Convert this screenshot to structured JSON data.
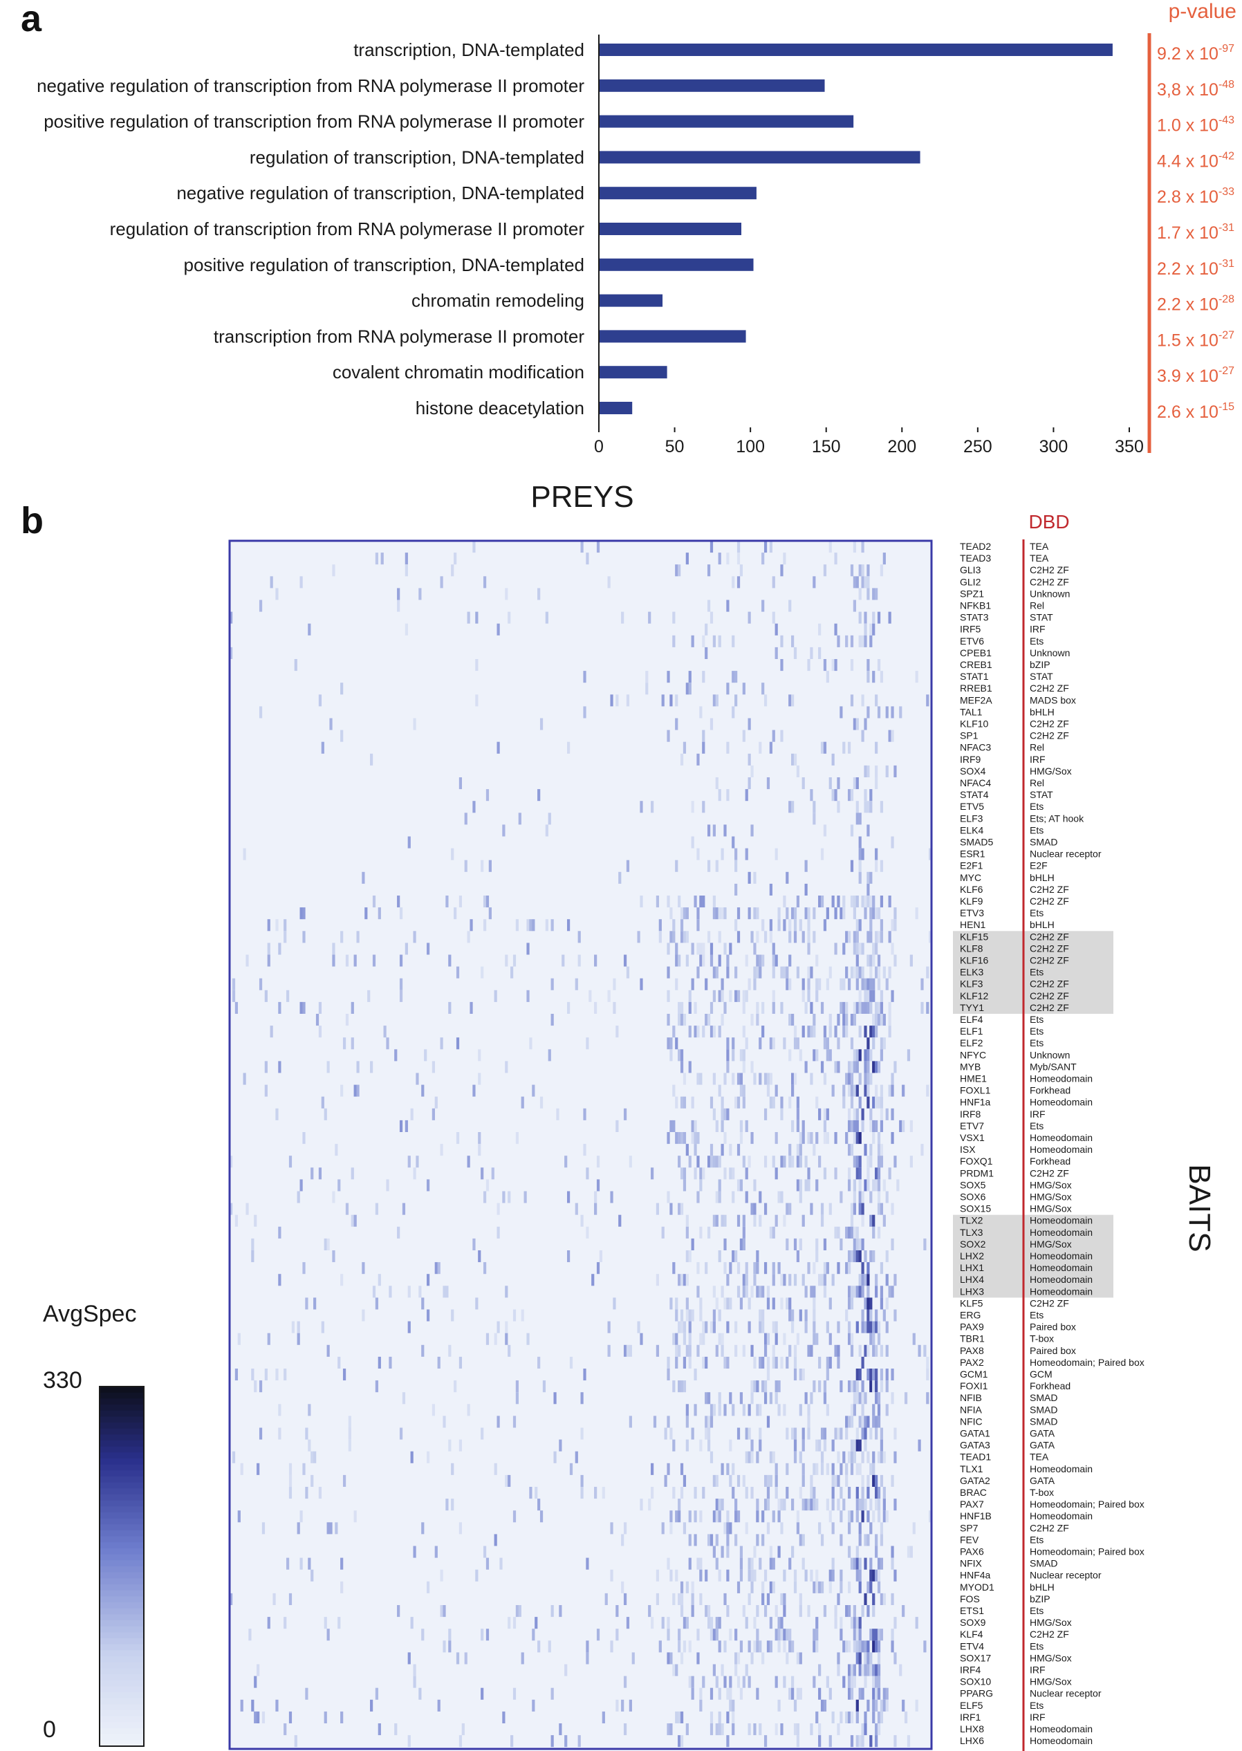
{
  "panel_a": {
    "letter": "a"
  },
  "panel_b": {
    "letter": "b"
  },
  "chart_data": [
    {
      "type": "bar",
      "orientation": "horizontal",
      "categories": [
        "transcription, DNA-templated",
        "negative regulation of transcription from RNA polymerase II promoter",
        "positive regulation of transcription from RNA polymerase II promoter",
        "regulation of transcription, DNA-templated",
        "negative regulation of transcription, DNA-templated",
        "regulation of transcription from RNA polymerase II promoter",
        "positive regulation of transcription, DNA-templated",
        "chromatin remodeling",
        "transcription from RNA polymerase II promoter",
        "covalent chromatin modification",
        "histone deacetylation"
      ],
      "values": [
        339,
        149,
        168,
        212,
        104,
        94,
        102,
        42,
        97,
        45,
        22
      ],
      "xlim": [
        0,
        350
      ],
      "xticks": [
        0,
        50,
        100,
        150,
        200,
        250,
        300,
        350
      ],
      "pvalue_header": "p-value",
      "pvalues": [
        {
          "mant": "9.2 x 10",
          "exp": "-97"
        },
        {
          "mant": "3,8 x 10",
          "exp": "-48"
        },
        {
          "mant": "1.0 x 10",
          "exp": "-43"
        },
        {
          "mant": "4.4 x 10",
          "exp": "-42"
        },
        {
          "mant": "2.8 x 10",
          "exp": "-33"
        },
        {
          "mant": "1.7 x 10",
          "exp": "-31"
        },
        {
          "mant": "2.2 x 10",
          "exp": "-31"
        },
        {
          "mant": "2.2 x 10",
          "exp": "-28"
        },
        {
          "mant": "1.5 x 10",
          "exp": "-27"
        },
        {
          "mant": "3.9 x 10",
          "exp": "-27"
        },
        {
          "mant": "2.6 x 10",
          "exp": "-15"
        }
      ],
      "colors": {
        "bar": "#2e3f8f",
        "pvalue": "#e5603e"
      }
    },
    {
      "type": "heatmap",
      "title": "PREYS",
      "ylabel": "BAITS",
      "dbd_header": "DBD",
      "baits": [
        {
          "name": "TEAD2",
          "dbd": "TEA"
        },
        {
          "name": "TEAD3",
          "dbd": "TEA"
        },
        {
          "name": "GLI3",
          "dbd": "C2H2 ZF"
        },
        {
          "name": "GLI2",
          "dbd": "C2H2 ZF"
        },
        {
          "name": "SPZ1",
          "dbd": "Unknown"
        },
        {
          "name": "NFKB1",
          "dbd": "Rel"
        },
        {
          "name": "STAT3",
          "dbd": "STAT"
        },
        {
          "name": "IRF5",
          "dbd": "IRF"
        },
        {
          "name": "ETV6",
          "dbd": "Ets"
        },
        {
          "name": "CPEB1",
          "dbd": "Unknown"
        },
        {
          "name": "CREB1",
          "dbd": "bZIP"
        },
        {
          "name": "STAT1",
          "dbd": "STAT"
        },
        {
          "name": "RREB1",
          "dbd": "C2H2 ZF"
        },
        {
          "name": "MEF2A",
          "dbd": "MADS box"
        },
        {
          "name": "TAL1",
          "dbd": "bHLH"
        },
        {
          "name": "KLF10",
          "dbd": "C2H2 ZF"
        },
        {
          "name": "SP1",
          "dbd": "C2H2 ZF"
        },
        {
          "name": "NFAC3",
          "dbd": "Rel"
        },
        {
          "name": "IRF9",
          "dbd": "IRF"
        },
        {
          "name": "SOX4",
          "dbd": "HMG/Sox"
        },
        {
          "name": "NFAC4",
          "dbd": "Rel"
        },
        {
          "name": "STAT4",
          "dbd": "STAT"
        },
        {
          "name": "ETV5",
          "dbd": "Ets"
        },
        {
          "name": "ELF3",
          "dbd": "Ets; AT hook"
        },
        {
          "name": "ELK4",
          "dbd": "Ets"
        },
        {
          "name": "SMAD5",
          "dbd": "SMAD"
        },
        {
          "name": "ESR1",
          "dbd": "Nuclear receptor"
        },
        {
          "name": "E2F1",
          "dbd": "E2F"
        },
        {
          "name": "MYC",
          "dbd": "bHLH"
        },
        {
          "name": "KLF6",
          "dbd": "C2H2 ZF"
        },
        {
          "name": "KLF9",
          "dbd": "C2H2 ZF"
        },
        {
          "name": "ETV3",
          "dbd": "Ets"
        },
        {
          "name": "HEN1",
          "dbd": "bHLH"
        },
        {
          "name": "KLF15",
          "dbd": "C2H2 ZF"
        },
        {
          "name": "KLF8",
          "dbd": "C2H2 ZF"
        },
        {
          "name": "KLF16",
          "dbd": "C2H2 ZF"
        },
        {
          "name": "ELK3",
          "dbd": "Ets"
        },
        {
          "name": "KLF3",
          "dbd": "C2H2 ZF"
        },
        {
          "name": "KLF12",
          "dbd": "C2H2 ZF"
        },
        {
          "name": "TYY1",
          "dbd": "C2H2 ZF"
        },
        {
          "name": "ELF4",
          "dbd": "Ets"
        },
        {
          "name": "ELF1",
          "dbd": "Ets"
        },
        {
          "name": "ELF2",
          "dbd": "Ets"
        },
        {
          "name": "NFYC",
          "dbd": "Unknown"
        },
        {
          "name": "MYB",
          "dbd": "Myb/SANT"
        },
        {
          "name": "HME1",
          "dbd": "Homeodomain"
        },
        {
          "name": "FOXL1",
          "dbd": "Forkhead"
        },
        {
          "name": "HNF1a",
          "dbd": "Homeodomain"
        },
        {
          "name": "IRF8",
          "dbd": "IRF"
        },
        {
          "name": "ETV7",
          "dbd": "Ets"
        },
        {
          "name": "VSX1",
          "dbd": "Homeodomain"
        },
        {
          "name": "ISX",
          "dbd": "Homeodomain"
        },
        {
          "name": "FOXQ1",
          "dbd": "Forkhead"
        },
        {
          "name": "PRDM1",
          "dbd": "C2H2 ZF"
        },
        {
          "name": "SOX5",
          "dbd": "HMG/Sox"
        },
        {
          "name": "SOX6",
          "dbd": "HMG/Sox"
        },
        {
          "name": "SOX15",
          "dbd": "HMG/Sox"
        },
        {
          "name": "TLX2",
          "dbd": "Homeodomain"
        },
        {
          "name": "TLX3",
          "dbd": "Homeodomain"
        },
        {
          "name": "SOX2",
          "dbd": "HMG/Sox"
        },
        {
          "name": "LHX2",
          "dbd": "Homeodomain"
        },
        {
          "name": "LHX1",
          "dbd": "Homeodomain"
        },
        {
          "name": "LHX4",
          "dbd": "Homeodomain"
        },
        {
          "name": "LHX3",
          "dbd": "Homeodomain"
        },
        {
          "name": "KLF5",
          "dbd": "C2H2 ZF"
        },
        {
          "name": "ERG",
          "dbd": "Ets"
        },
        {
          "name": "PAX9",
          "dbd": "Paired box"
        },
        {
          "name": "TBR1",
          "dbd": "T-box"
        },
        {
          "name": "PAX8",
          "dbd": "Paired box"
        },
        {
          "name": "PAX2",
          "dbd": "Homeodomain; Paired box"
        },
        {
          "name": "GCM1",
          "dbd": "GCM"
        },
        {
          "name": "FOXI1",
          "dbd": "Forkhead"
        },
        {
          "name": "NFIB",
          "dbd": "SMAD"
        },
        {
          "name": "NFIA",
          "dbd": "SMAD"
        },
        {
          "name": "NFIC",
          "dbd": "SMAD"
        },
        {
          "name": "GATA1",
          "dbd": "GATA"
        },
        {
          "name": "GATA3",
          "dbd": "GATA"
        },
        {
          "name": "TEAD1",
          "dbd": "TEA"
        },
        {
          "name": "TLX1",
          "dbd": "Homeodomain"
        },
        {
          "name": "GATA2",
          "dbd": "GATA"
        },
        {
          "name": "BRAC",
          "dbd": "T-box"
        },
        {
          "name": "PAX7",
          "dbd": "Homeodomain; Paired box"
        },
        {
          "name": "HNF1B",
          "dbd": "Homeodomain"
        },
        {
          "name": "SP7",
          "dbd": "C2H2 ZF"
        },
        {
          "name": "FEV",
          "dbd": "Ets"
        },
        {
          "name": "PAX6",
          "dbd": "Homeodomain; Paired box"
        },
        {
          "name": "NFIX",
          "dbd": "SMAD"
        },
        {
          "name": "HNF4a",
          "dbd": "Nuclear receptor"
        },
        {
          "name": "MYOD1",
          "dbd": "bHLH"
        },
        {
          "name": "FOS",
          "dbd": "bZIP"
        },
        {
          "name": "ETS1",
          "dbd": "Ets"
        },
        {
          "name": "SOX9",
          "dbd": "HMG/Sox"
        },
        {
          "name": "KLF4",
          "dbd": "C2H2 ZF"
        },
        {
          "name": "ETV4",
          "dbd": "Ets"
        },
        {
          "name": "SOX17",
          "dbd": "HMG/Sox"
        },
        {
          "name": "IRF4",
          "dbd": "IRF"
        },
        {
          "name": "SOX10",
          "dbd": "HMG/Sox"
        },
        {
          "name": "PPARG",
          "dbd": "Nuclear receptor"
        },
        {
          "name": "ELF5",
          "dbd": "Ets"
        },
        {
          "name": "IRF1",
          "dbd": "IRF"
        },
        {
          "name": "LHX8",
          "dbd": "Homeodomain"
        },
        {
          "name": "LHX6",
          "dbd": "Homeodomain"
        }
      ],
      "highlighted_groups": [
        [
          "KLF15",
          "TYY1"
        ],
        [
          "TLX2",
          "LHX3"
        ]
      ],
      "colorbar": {
        "label": "AvgSpec",
        "min": 0,
        "max": 330,
        "min_label": "0",
        "max_label": "330"
      },
      "colors": {
        "frame": "#3a3aa8",
        "dbd_line": "#c0282d",
        "highlight": "#d9d9d9"
      }
    }
  ]
}
